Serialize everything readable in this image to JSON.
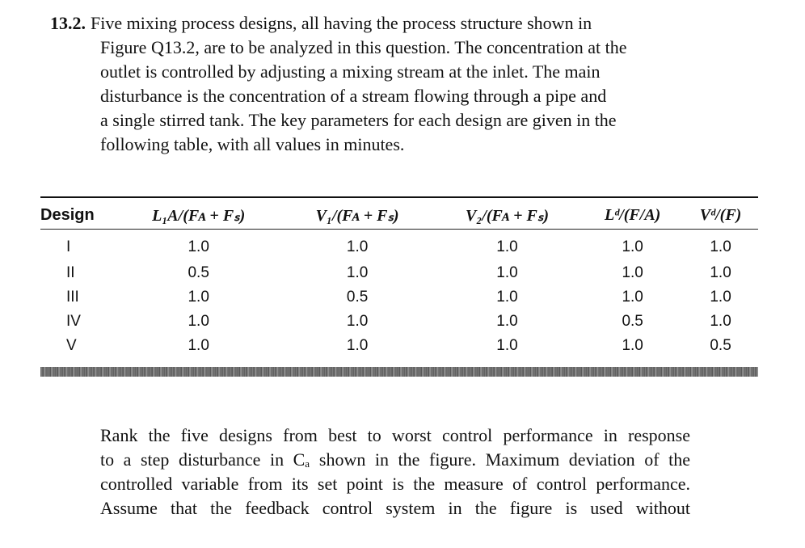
{
  "problem": {
    "number": "13.2.",
    "lines": [
      "Five mixing process designs, all having the process structure shown in",
      "Figure Q13.2, are to be analyzed in this question. The concentration at the",
      "outlet is controlled by adjusting a mixing stream at the inlet. The main",
      "disturbance is the concentration of a stream flowing through a pipe and",
      "a single stirred tank. The key parameters for each design are given in the",
      "following table, with all values in minutes."
    ]
  },
  "table": {
    "headers": [
      "Design",
      "L₁A/(Fᴀ + Fₛ)",
      "V₁/(Fᴀ + Fₛ)",
      "V₂/(Fᴀ + Fₛ)",
      "Lᵈ/(F/A)",
      "Vᵈ/(F)"
    ],
    "rows": [
      [
        "I",
        "1.0",
        "1.0",
        "1.0",
        "1.0",
        "1.0"
      ],
      [
        "II",
        "0.5",
        "1.0",
        "1.0",
        "1.0",
        "1.0"
      ],
      [
        "III",
        "1.0",
        "0.5",
        "1.0",
        "1.0",
        "1.0"
      ],
      [
        "IV",
        "1.0",
        "1.0",
        "1.0",
        "0.5",
        "1.0"
      ],
      [
        "V",
        "1.0",
        "1.0",
        "1.0",
        "1.0",
        "0.5"
      ]
    ]
  },
  "followup": {
    "lines": [
      "Rank the five designs from best to worst control performance in response",
      "to a step disturbance in Cₐ shown in the figure. Maximum deviation of the",
      "controlled variable from its set point is the measure of control performance.",
      "Assume that the feedback control system in the figure is used without"
    ]
  }
}
